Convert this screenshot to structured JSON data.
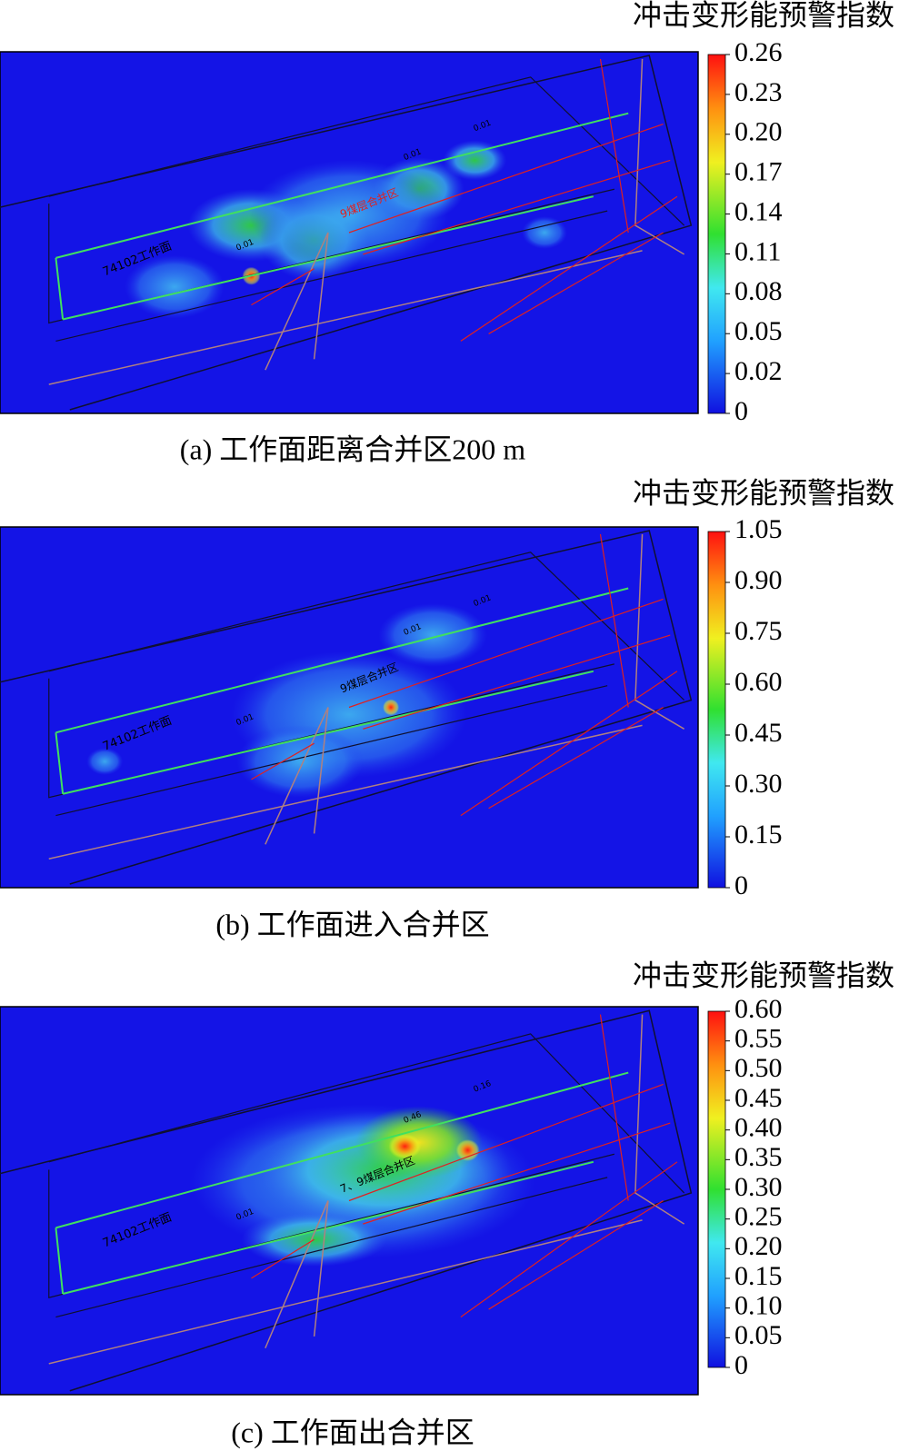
{
  "panels": [
    {
      "colorbar_title": "冲击变形能预警指数",
      "colorbar_ticks": [
        "0.26",
        "0.23",
        "0.20",
        "0.17",
        "0.14",
        "0.11",
        "0.08",
        "0.05",
        "0.02",
        "0"
      ],
      "map_labels": [
        "74102工作面",
        "9煤层合并区"
      ],
      "contour_labels": [
        "0.01",
        "0.01",
        "0.01"
      ],
      "caption": "(a)  工作面距离合并区200 m"
    },
    {
      "colorbar_title": "冲击变形能预警指数",
      "colorbar_ticks": [
        "1.05",
        "0.90",
        "0.75",
        "0.60",
        "0.45",
        "0.30",
        "0.15",
        "0"
      ],
      "map_labels": [
        "74102工作面",
        "9煤层合并区"
      ],
      "contour_labels": [
        "0.01",
        "0.01",
        "0.01"
      ],
      "caption": "(b)  工作面进入合并区"
    },
    {
      "colorbar_title": "冲击变形能预警指数",
      "colorbar_ticks": [
        "0.60",
        "0.55",
        "0.50",
        "0.45",
        "0.40",
        "0.35",
        "0.30",
        "0.25",
        "0.20",
        "0.15",
        "0.10",
        "0.05",
        "0"
      ],
      "map_labels": [
        "74102工作面",
        "7、9煤层合并区"
      ],
      "contour_labels": [
        "0.01",
        "0.16",
        "0.46"
      ],
      "caption": "(c)  工作面出合并区"
    }
  ]
}
